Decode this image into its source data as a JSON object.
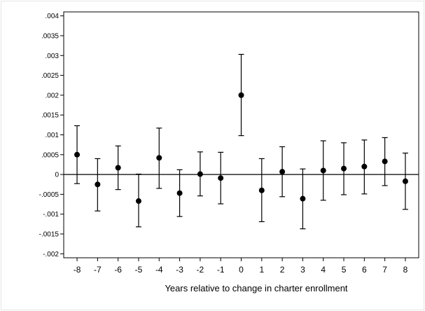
{
  "chart_data": {
    "type": "scatter",
    "xlabel": "Years relative to change in charter enrollment",
    "ylabel": "",
    "x": [
      -8,
      -7,
      -6,
      -5,
      -4,
      -3,
      -2,
      -1,
      0,
      1,
      2,
      3,
      4,
      5,
      6,
      7,
      8
    ],
    "estimates": [
      0.0005,
      -0.00025,
      0.00017,
      -0.00067,
      0.00042,
      -0.00047,
      1e-05,
      -9e-05,
      0.002,
      -0.0004,
      7e-05,
      -0.00061,
      0.0001,
      0.00015,
      0.0002,
      0.00033,
      -0.00017
    ],
    "ci_lower": [
      -0.00023,
      -0.00092,
      -0.00038,
      -0.00132,
      -0.00035,
      -0.00106,
      -0.00054,
      -0.00074,
      0.00098,
      -0.00119,
      -0.00056,
      -0.00137,
      -0.00065,
      -0.00051,
      -0.00049,
      -0.00028,
      -0.00088
    ],
    "ci_upper": [
      0.00123,
      0.0004,
      0.00072,
      1e-05,
      0.00117,
      0.00012,
      0.00057,
      0.00056,
      0.00303,
      0.0004,
      0.0007,
      0.00014,
      0.00085,
      0.0008,
      0.00087,
      0.00093,
      0.00054
    ],
    "ylim": [
      -0.0021,
      0.0041
    ],
    "y_ticks": [
      -0.002,
      -0.0015,
      -0.001,
      -0.0005,
      0,
      0.0005,
      0.001,
      0.0015,
      0.002,
      0.0025,
      0.003,
      0.0035,
      0.004
    ],
    "y_tick_labels": [
      "-.002",
      "-.0015",
      "-.001",
      "-.0005",
      "0",
      ".0005",
      ".001",
      ".0015",
      ".002",
      ".0025",
      ".003",
      ".0035",
      ".004"
    ],
    "x_tick_labels": [
      "-8",
      "-7",
      "-6",
      "-5",
      "-4",
      "-3",
      "-2",
      "-1",
      "0",
      "1",
      "2",
      "3",
      "4",
      "5",
      "6",
      "7",
      "8"
    ],
    "reference_line_y": 0,
    "grid": false,
    "marker_color": "#000000",
    "background_color": "#ffffff"
  }
}
